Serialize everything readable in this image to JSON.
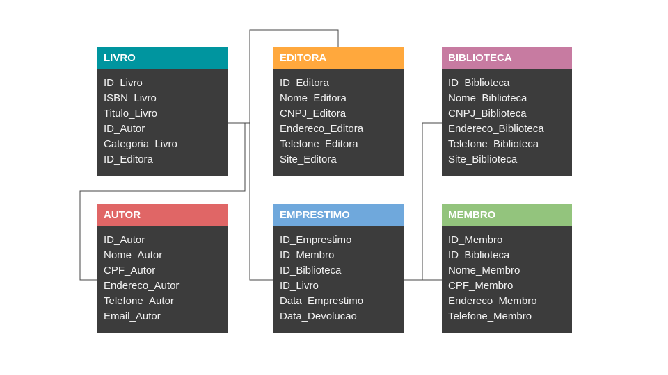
{
  "colors": {
    "livro": "#00959f",
    "editora": "#ffa83d",
    "biblioteca": "#c77ba1",
    "autor": "#e06666",
    "emprestimo": "#6fa8dc",
    "membro": "#93c47d",
    "body": "#3c3c3c",
    "connector": "#444444"
  },
  "tables": {
    "livro": {
      "title": "LIVRO",
      "fields": [
        "ID_Livro",
        "ISBN_Livro",
        "Titulo_Livro",
        "ID_Autor",
        "Categoria_Livro",
        "ID_Editora"
      ]
    },
    "editora": {
      "title": "EDITORA",
      "fields": [
        "ID_Editora",
        "Nome_Editora",
        "CNPJ_Editora",
        "Endereco_Editora",
        "Telefone_Editora",
        "Site_Editora"
      ]
    },
    "biblioteca": {
      "title": "BIBLIOTECA",
      "fields": [
        "ID_Biblioteca",
        "Nome_Biblioteca",
        "CNPJ_Biblioteca",
        "Endereco_Biblioteca",
        "Telefone_Biblioteca",
        "Site_Biblioteca"
      ]
    },
    "autor": {
      "title": "AUTOR",
      "fields": [
        "ID_Autor",
        "Nome_Autor",
        "CPF_Autor",
        "Endereco_Autor",
        "Telefone_Autor",
        "Email_Autor"
      ]
    },
    "emprestimo": {
      "title": "EMPRESTIMO",
      "fields": [
        "ID_Emprestimo",
        "ID_Membro",
        "ID_Biblioteca",
        "ID_Livro",
        "Data_Emprestimo",
        "Data_Devolucao"
      ]
    },
    "membro": {
      "title": "MEMBRO",
      "fields": [
        "ID_Membro",
        "ID_Biblioteca",
        "Nome_Membro",
        "CPF_Membro",
        "Endereco_Membro",
        "Telefone_Membro"
      ]
    }
  }
}
